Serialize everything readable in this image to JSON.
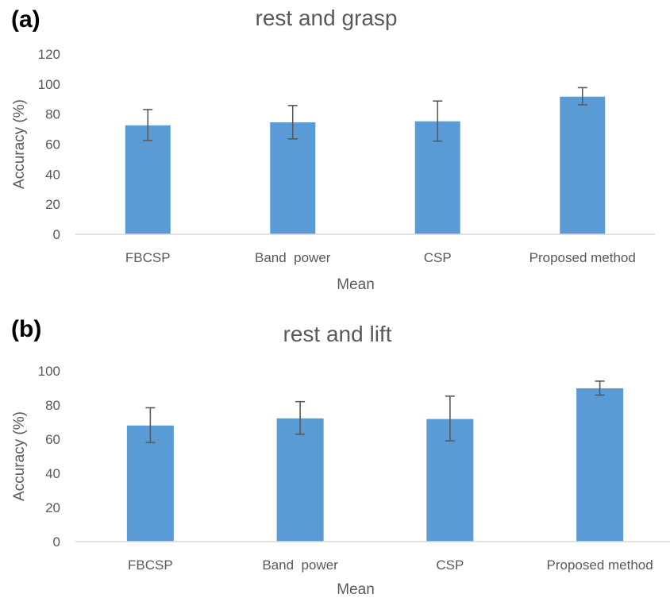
{
  "chart_data": [
    {
      "panel_label": "(a)",
      "type": "bar",
      "title": "rest and grasp",
      "xlabel": "Mean",
      "ylabel": "Accuracy (%)",
      "categories": [
        "FBCSP",
        "Band  power",
        "CSP",
        "Proposed method"
      ],
      "values": [
        72.5,
        74.5,
        75.2,
        91.6
      ],
      "error_low": [
        62.5,
        63.5,
        62.0,
        86.2
      ],
      "error_high": [
        83.0,
        85.7,
        88.7,
        97.6
      ],
      "ylim": [
        0,
        120
      ],
      "yticks": [
        0,
        20,
        40,
        60,
        80,
        100,
        120
      ],
      "grid": false,
      "colors": {
        "bar": "#5B9BD5",
        "error": "#595959",
        "axis": "#D9D9D9"
      }
    },
    {
      "panel_label": "(b)",
      "type": "bar",
      "title": "rest and lift",
      "xlabel": "Mean",
      "ylabel": "Accuracy (%)",
      "categories": [
        "FBCSP",
        "Band  power",
        "CSP",
        "Proposed method"
      ],
      "values": [
        68.0,
        72.2,
        71.8,
        89.8
      ],
      "error_low": [
        58.0,
        62.9,
        59.0,
        85.8
      ],
      "error_high": [
        78.4,
        82.0,
        85.2,
        94.0
      ],
      "ylim": [
        0,
        100
      ],
      "yticks": [
        0,
        20,
        40,
        60,
        80,
        100
      ],
      "grid": false,
      "colors": {
        "bar": "#5B9BD5",
        "error": "#595959",
        "axis": "#D9D9D9"
      }
    }
  ]
}
